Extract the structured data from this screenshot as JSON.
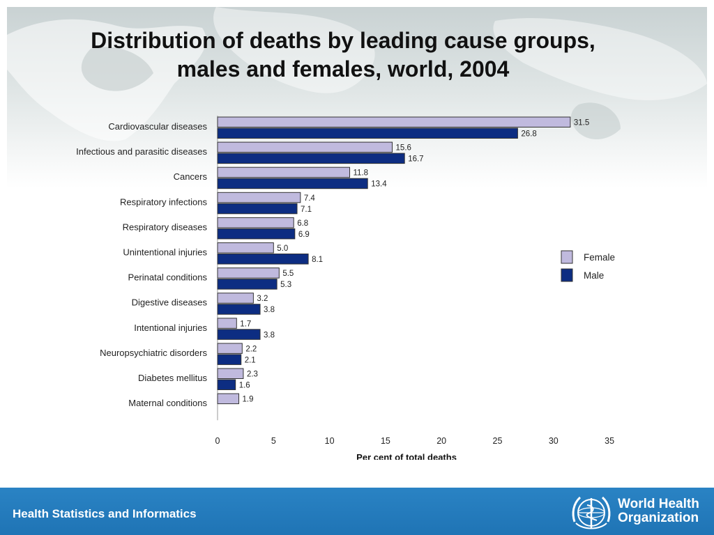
{
  "slide": {
    "title_line1": "Distribution of deaths by leading cause groups,",
    "title_line2": "males and females, world, 2004"
  },
  "footer": {
    "text": "Health Statistics and Informatics",
    "logo_line1": "World Health",
    "logo_line2": "Organization"
  },
  "chart_data": {
    "type": "bar",
    "orientation": "horizontal",
    "categories": [
      "Cardiovascular diseases",
      "Infectious and parasitic diseases",
      "Cancers",
      "Respiratory infections",
      "Respiratory diseases",
      "Unintentional injuries",
      "Perinatal conditions",
      "Digestive diseases",
      "Intentional injuries",
      "Neuropsychiatric disorders",
      "Diabetes mellitus",
      "Maternal conditions"
    ],
    "series": [
      {
        "name": "Female",
        "color": "#c0bade",
        "values": [
          31.5,
          15.6,
          11.8,
          7.4,
          6.8,
          5.0,
          5.5,
          3.2,
          1.7,
          2.2,
          2.3,
          1.9
        ],
        "labels": [
          "31.5",
          "15.6",
          "11.8",
          "7.4",
          "6.8",
          "5.0",
          "5.5",
          "3.2",
          "1.7",
          "2.2",
          "2.3",
          "1.9"
        ]
      },
      {
        "name": "Male",
        "color": "#0d2d82",
        "values": [
          26.8,
          16.7,
          13.4,
          7.1,
          6.9,
          8.1,
          5.3,
          3.8,
          3.8,
          2.1,
          1.6,
          null
        ],
        "labels": [
          "26.8",
          "16.7",
          "13.4",
          "7.1",
          "6.9",
          "8.1",
          "5.3",
          "3.8",
          "3.8",
          "2.1",
          "1.6",
          ""
        ]
      }
    ],
    "xlabel": "Per cent of total deaths",
    "ylabel": "",
    "xlim": [
      0,
      35
    ],
    "xticks": [
      0,
      5,
      10,
      15,
      20,
      25,
      30,
      35
    ],
    "grid": false,
    "legend_position": "right"
  }
}
